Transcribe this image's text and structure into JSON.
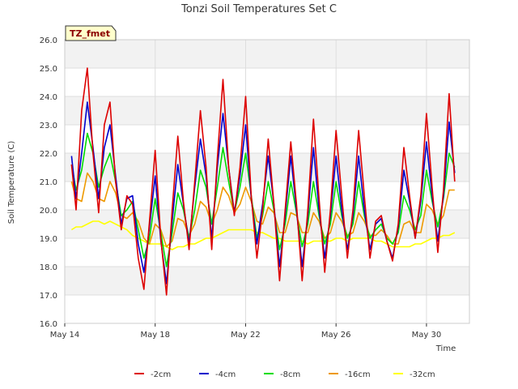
{
  "chart_data": {
    "type": "line",
    "title": "Tonzi Soil Temperatures Set C",
    "xlabel": "Time",
    "ylabel": "Soil Temperature (C)",
    "badge": "TZ_fmet",
    "xlim": [
      0,
      17.9
    ],
    "ylim": [
      16.0,
      26.0
    ],
    "x_ticks": [
      {
        "x": 0,
        "label": "May 14"
      },
      {
        "x": 4,
        "label": "May 18"
      },
      {
        "x": 8,
        "label": "May 22"
      },
      {
        "x": 12,
        "label": "May 26"
      },
      {
        "x": 16,
        "label": "May 30"
      }
    ],
    "y_ticks": [
      16.0,
      17.0,
      18.0,
      19.0,
      20.0,
      21.0,
      22.0,
      23.0,
      24.0,
      25.0,
      26.0
    ],
    "grid": true,
    "legend_position": "bottom",
    "x": [
      0.3,
      0.5,
      0.75,
      1.0,
      1.25,
      1.5,
      1.75,
      2.0,
      2.25,
      2.5,
      2.75,
      3.0,
      3.25,
      3.5,
      3.75,
      4.0,
      4.25,
      4.5,
      4.75,
      5.0,
      5.25,
      5.5,
      5.75,
      6.0,
      6.25,
      6.5,
      6.75,
      7.0,
      7.25,
      7.5,
      7.75,
      8.0,
      8.25,
      8.5,
      8.75,
      9.0,
      9.25,
      9.5,
      9.75,
      10.0,
      10.25,
      10.5,
      10.75,
      11.0,
      11.25,
      11.5,
      11.75,
      12.0,
      12.25,
      12.5,
      12.75,
      13.0,
      13.25,
      13.5,
      13.75,
      14.0,
      14.25,
      14.5,
      14.75,
      15.0,
      15.25,
      15.5,
      15.75,
      16.0,
      16.25,
      16.5,
      16.75,
      17.0,
      17.25
    ],
    "series": [
      {
        "name": "-2cm",
        "color": "#dd0000",
        "values": [
          21.6,
          20.0,
          23.5,
          25.0,
          22.0,
          19.9,
          23.0,
          23.8,
          21.0,
          19.3,
          20.5,
          20.2,
          18.3,
          17.2,
          19.6,
          22.1,
          19.0,
          17.0,
          20.0,
          22.6,
          20.3,
          18.6,
          21.0,
          23.5,
          21.5,
          18.6,
          21.8,
          24.6,
          21.5,
          19.8,
          21.5,
          24.0,
          20.5,
          18.3,
          20.0,
          22.5,
          20.2,
          17.5,
          20.0,
          22.4,
          20.2,
          17.5,
          20.0,
          23.2,
          20.4,
          17.8,
          20.0,
          22.8,
          20.5,
          18.3,
          20.0,
          22.8,
          20.5,
          18.3,
          19.6,
          19.8,
          18.9,
          18.2,
          19.5,
          22.2,
          20.5,
          19.0,
          20.5,
          23.4,
          20.8,
          18.5,
          20.7,
          24.1,
          21.0
        ]
      },
      {
        "name": "-4cm",
        "color": "#0000cc",
        "values": [
          21.9,
          20.4,
          22.0,
          23.8,
          22.2,
          20.4,
          22.2,
          23.0,
          21.2,
          19.5,
          20.4,
          20.5,
          18.8,
          17.8,
          19.4,
          21.2,
          18.9,
          17.4,
          19.6,
          21.6,
          20.2,
          18.8,
          20.8,
          22.5,
          21.2,
          19.0,
          21.5,
          23.4,
          21.5,
          19.9,
          21.2,
          23.0,
          20.4,
          18.8,
          20.2,
          21.9,
          20.2,
          18.0,
          19.8,
          21.9,
          20.0,
          18.0,
          19.8,
          22.2,
          20.0,
          18.3,
          19.8,
          21.9,
          20.0,
          18.6,
          19.8,
          21.9,
          20.0,
          18.6,
          19.5,
          19.7,
          18.9,
          18.3,
          19.4,
          21.4,
          20.3,
          19.0,
          20.3,
          22.4,
          20.5,
          18.9,
          20.5,
          23.1,
          21.3
        ]
      },
      {
        "name": "-8cm",
        "color": "#00dd00",
        "values": [
          21.6,
          20.7,
          21.4,
          22.7,
          22.0,
          20.8,
          21.5,
          22.0,
          21.0,
          19.8,
          20.0,
          20.3,
          19.3,
          18.3,
          19.0,
          20.4,
          19.2,
          18.0,
          19.2,
          20.6,
          20.0,
          19.0,
          20.0,
          21.4,
          20.8,
          19.5,
          20.8,
          22.2,
          21.0,
          19.9,
          20.8,
          22.0,
          20.5,
          19.0,
          19.8,
          21.0,
          20.0,
          18.6,
          19.5,
          21.0,
          19.9,
          18.7,
          19.5,
          21.0,
          19.8,
          18.8,
          19.5,
          21.0,
          19.8,
          19.0,
          19.5,
          21.0,
          19.8,
          19.0,
          19.3,
          19.5,
          19.0,
          18.8,
          19.2,
          20.5,
          20.0,
          19.3,
          19.8,
          21.4,
          20.3,
          19.4,
          20.4,
          22.0,
          21.5
        ]
      },
      {
        "name": "-16cm",
        "color": "#ee9900",
        "values": [
          21.0,
          20.4,
          20.3,
          21.3,
          21.0,
          20.4,
          20.3,
          21.0,
          20.6,
          19.8,
          19.7,
          19.9,
          19.6,
          19.0,
          18.8,
          19.5,
          19.3,
          18.7,
          18.9,
          19.7,
          19.6,
          19.1,
          19.5,
          20.3,
          20.1,
          19.5,
          20.0,
          20.8,
          20.5,
          19.9,
          20.2,
          20.8,
          20.3,
          19.6,
          19.5,
          20.1,
          19.9,
          19.2,
          19.2,
          19.9,
          19.8,
          19.2,
          19.2,
          19.9,
          19.6,
          19.0,
          19.2,
          19.9,
          19.6,
          19.1,
          19.2,
          19.9,
          19.6,
          19.1,
          19.1,
          19.3,
          19.1,
          18.8,
          18.8,
          19.5,
          19.6,
          19.2,
          19.2,
          20.2,
          20.0,
          19.5,
          19.8,
          20.7,
          20.7
        ]
      },
      {
        "name": "-32cm",
        "color": "#ffff00",
        "values": [
          19.3,
          19.4,
          19.4,
          19.5,
          19.6,
          19.6,
          19.5,
          19.6,
          19.5,
          19.4,
          19.3,
          19.1,
          19.0,
          18.9,
          18.8,
          18.8,
          18.8,
          18.7,
          18.6,
          18.7,
          18.7,
          18.8,
          18.8,
          18.9,
          19.0,
          19.0,
          19.1,
          19.2,
          19.3,
          19.3,
          19.3,
          19.3,
          19.3,
          19.2,
          19.2,
          19.1,
          19.0,
          19.0,
          18.9,
          18.9,
          18.9,
          18.9,
          18.8,
          18.9,
          18.9,
          18.9,
          18.9,
          19.0,
          19.0,
          18.9,
          19.0,
          19.0,
          19.0,
          19.0,
          18.9,
          18.9,
          18.8,
          18.7,
          18.7,
          18.7,
          18.7,
          18.8,
          18.8,
          18.9,
          19.0,
          19.0,
          19.1,
          19.1,
          19.2
        ]
      }
    ]
  }
}
